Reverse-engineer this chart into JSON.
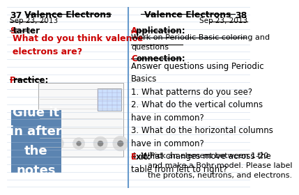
{
  "background_color": "#ffffff",
  "divider_color": "#6699cc",
  "left_panel": {
    "page_num": "37",
    "date": "Sep 23, 2013",
    "title": "Valence Electrons",
    "starter_label": "Starter",
    "starter_text": "What do you think valence\nelectrons are?",
    "practice_label": "Practice:",
    "glue_box_color": "#5b84b1",
    "glue_text": "Glue it\nin after\nthe\nnotes"
  },
  "right_panel": {
    "page_num": "38",
    "date": "Sep 23, 2013",
    "title": "Valence Electrons",
    "application_label": "Application:",
    "application_text": "Work on Periodic Basic coloring and\nquestions",
    "connection_label": "Connection:",
    "connection_text": "Answer questions using Periodic\nBasics\n1. What patterns do you see?\n2. What do the vertical columns\nhave in common?\n3. What do the horizontal columns\nhave in common?\n4. What changes move across the\ntable from left to right?",
    "exit_label": "Exit:",
    "exit_text": " Pick an element between 1-20\nand make a Bohr model. Please label\nthe protons, neutrons, and electrons."
  },
  "red_color": "#cc0000",
  "black_color": "#000000",
  "notebook_line_color": "#b0c4de",
  "notebook_line_alpha": 0.5
}
